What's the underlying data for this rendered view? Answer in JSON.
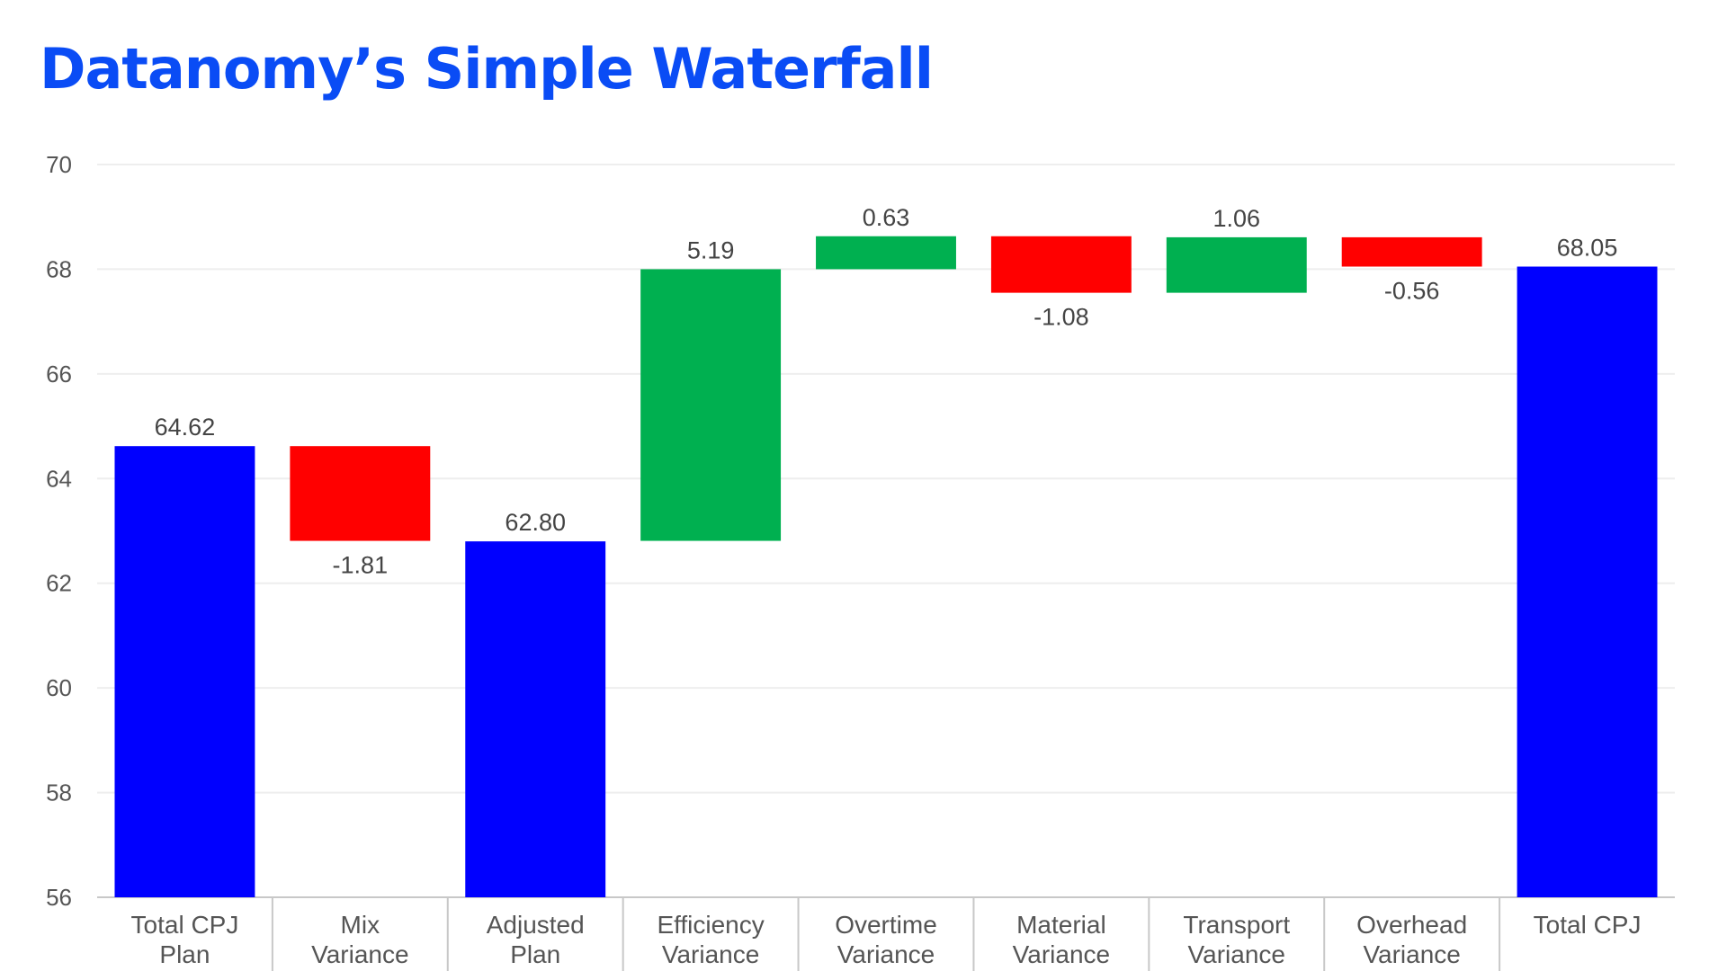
{
  "chart_data": {
    "type": "bar",
    "title": "Datanomy’s Simple Waterfall",
    "xlabel": "",
    "ylabel": "",
    "ylim": [
      56,
      70
    ],
    "yticks": [
      56,
      58,
      60,
      62,
      64,
      66,
      68,
      70
    ],
    "grid": true,
    "legend": "none",
    "categories": [
      [
        "Total CPJ",
        "Plan"
      ],
      [
        "Mix",
        "Variance"
      ],
      [
        "Adjusted",
        "Plan"
      ],
      [
        "Efficiency",
        "Variance"
      ],
      [
        "Overtime",
        "Variance"
      ],
      [
        "Material",
        "Variance"
      ],
      [
        "Transport",
        "Variance"
      ],
      [
        "Overhead",
        "Variance"
      ],
      [
        "Total CPJ"
      ]
    ],
    "bars": [
      {
        "kind": "total",
        "start": 56,
        "end": 64.62,
        "label": "64.62"
      },
      {
        "kind": "decrease",
        "start": 64.62,
        "end": 62.81,
        "label": "-1.81"
      },
      {
        "kind": "total",
        "start": 56,
        "end": 62.8,
        "label": "62.80"
      },
      {
        "kind": "increase",
        "start": 62.81,
        "end": 68.0,
        "label": "5.19"
      },
      {
        "kind": "increase",
        "start": 68.0,
        "end": 68.63,
        "label": "0.63"
      },
      {
        "kind": "decrease",
        "start": 68.63,
        "end": 67.55,
        "label": "-1.08"
      },
      {
        "kind": "increase",
        "start": 67.55,
        "end": 68.61,
        "label": "1.06"
      },
      {
        "kind": "decrease",
        "start": 68.61,
        "end": 68.05,
        "label": "-0.56"
      },
      {
        "kind": "total",
        "start": 56,
        "end": 68.05,
        "label": "68.05"
      }
    ],
    "colors": {
      "total": "#0000ff",
      "increase": "#00b050",
      "decrease": "#ff0000",
      "title": "#0a4cf5",
      "grid": "#eeeeee",
      "axis": "#c8c8c8"
    }
  }
}
